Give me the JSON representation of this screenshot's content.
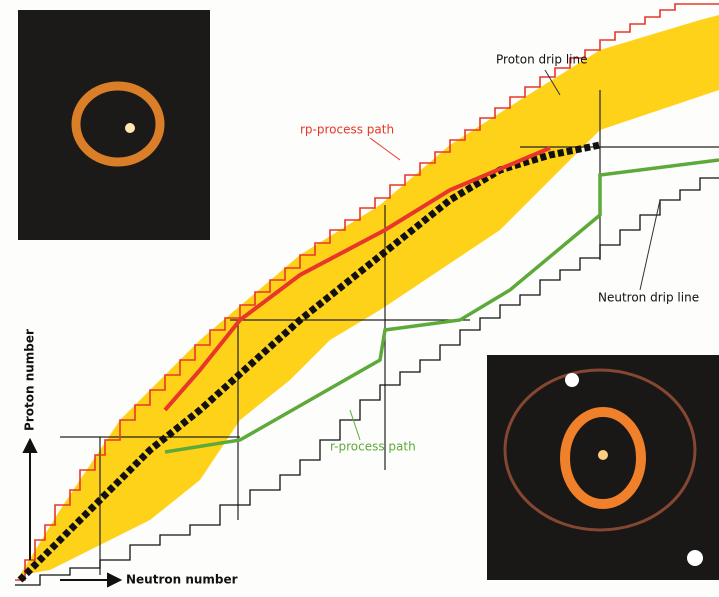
{
  "labels": {
    "proton_drip_line": "Proton drip line",
    "rp_process_path": "rp-process path",
    "neutron_drip_line": "Neutron drip line",
    "r_process_path": "r-process path"
  },
  "axes": {
    "y_label": "Proton number",
    "x_label": "Neutron number"
  }
}
